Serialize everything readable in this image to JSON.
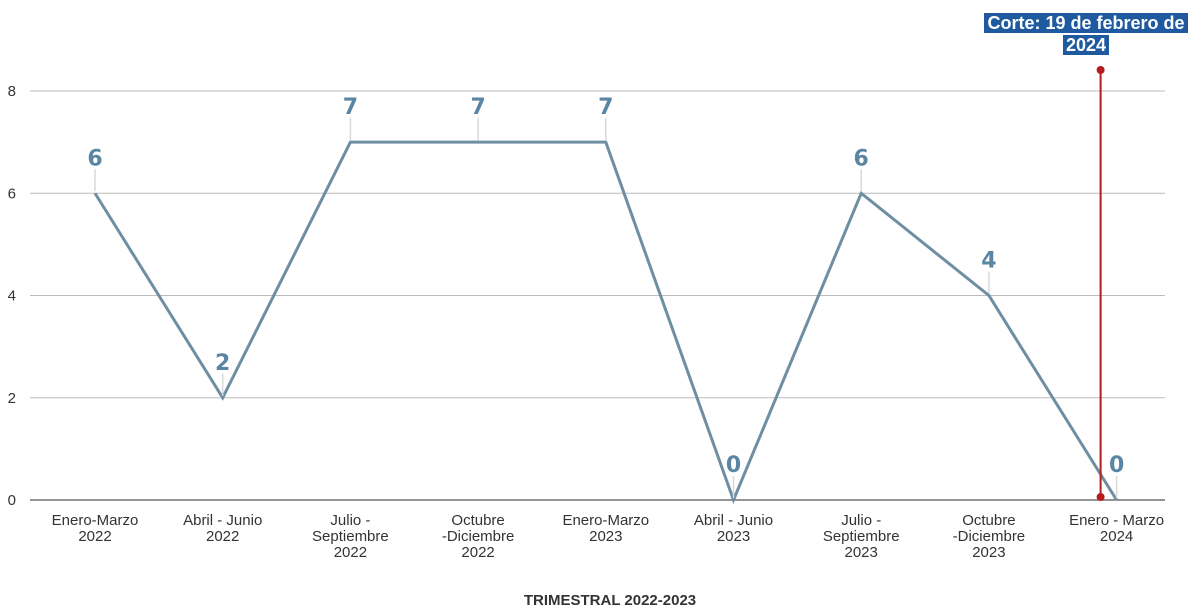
{
  "chart_data": {
    "type": "line",
    "categories": [
      [
        "Enero-Marzo",
        "2022"
      ],
      [
        "Abril - Junio",
        "2022"
      ],
      [
        "Julio -",
        "Septiembre",
        "2022"
      ],
      [
        "Octubre",
        "-Diciembre",
        "2022"
      ],
      [
        "Enero-Marzo",
        "2023"
      ],
      [
        "Abril - Junio",
        "2023"
      ],
      [
        "Julio -",
        "Septiembre",
        "2023"
      ],
      [
        "Octubre",
        "-Diciembre",
        "2023"
      ],
      [
        "Enero - Marzo",
        "2024"
      ]
    ],
    "series": [
      {
        "values": [
          6,
          2,
          7,
          7,
          7,
          0,
          6,
          4,
          0
        ]
      }
    ],
    "xlabel": "TRIMESTRAL 2022-2023",
    "ylabel": "",
    "ylim": [
      0,
      8
    ],
    "yticks": [
      0,
      2,
      4,
      6,
      8
    ],
    "grid": true,
    "annotation": {
      "text": "Corte: 19 de febrero de 2024",
      "position_category_index": 8
    },
    "colors": {
      "line": "#6e8fa2",
      "labels": "#5b86a3",
      "cutoff_line": "#b51d1d",
      "cutoff_box": "#1f5aa0",
      "grid": "#bcbcbc"
    }
  }
}
